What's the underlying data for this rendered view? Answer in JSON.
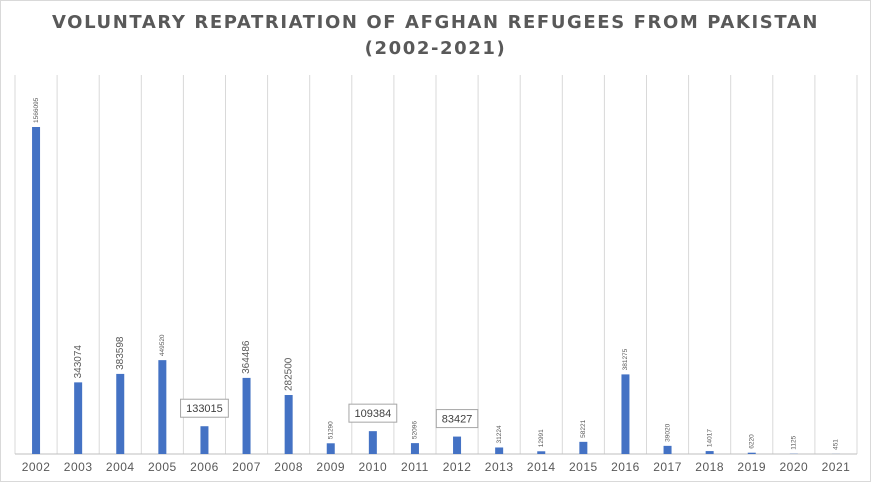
{
  "chart_data": {
    "type": "bar",
    "title_lines": [
      "VOLUNTARY REPATRIATION OF AFGHAN REFUGEES FROM PAKISTAN",
      "(2002-2021)"
    ],
    "categories": [
      "2002",
      "2003",
      "2004",
      "2005",
      "2006",
      "2007",
      "2008",
      "2009",
      "2010",
      "2011",
      "2012",
      "2013",
      "2014",
      "2015",
      "2016",
      "2017",
      "2018",
      "2019",
      "2020",
      "2021"
    ],
    "values": [
      1566095,
      343074,
      383598,
      449520,
      133015,
      364486,
      282500,
      51290,
      109384,
      52096,
      83427,
      31224,
      12991,
      58221,
      381275,
      39020,
      14017,
      6220,
      1125,
      451
    ],
    "value_labels": [
      "1566095",
      "343074",
      "383598",
      "449520",
      "133015",
      "364486",
      "282500",
      "51290",
      "109384",
      "52096",
      "83427",
      "31224",
      "12991",
      "58221",
      "381275",
      "39020",
      "14017",
      "6220",
      "1125",
      "451"
    ],
    "boxed_labels": [
      "2006",
      "2010",
      "2012"
    ],
    "ylim": [
      0,
      1566095
    ],
    "grid": "vertical",
    "legend": "none",
    "colors": {
      "bar": "#4472c4",
      "grid": "#d9d9d9",
      "text": "#595959",
      "axis": "#bfbfbf"
    }
  }
}
